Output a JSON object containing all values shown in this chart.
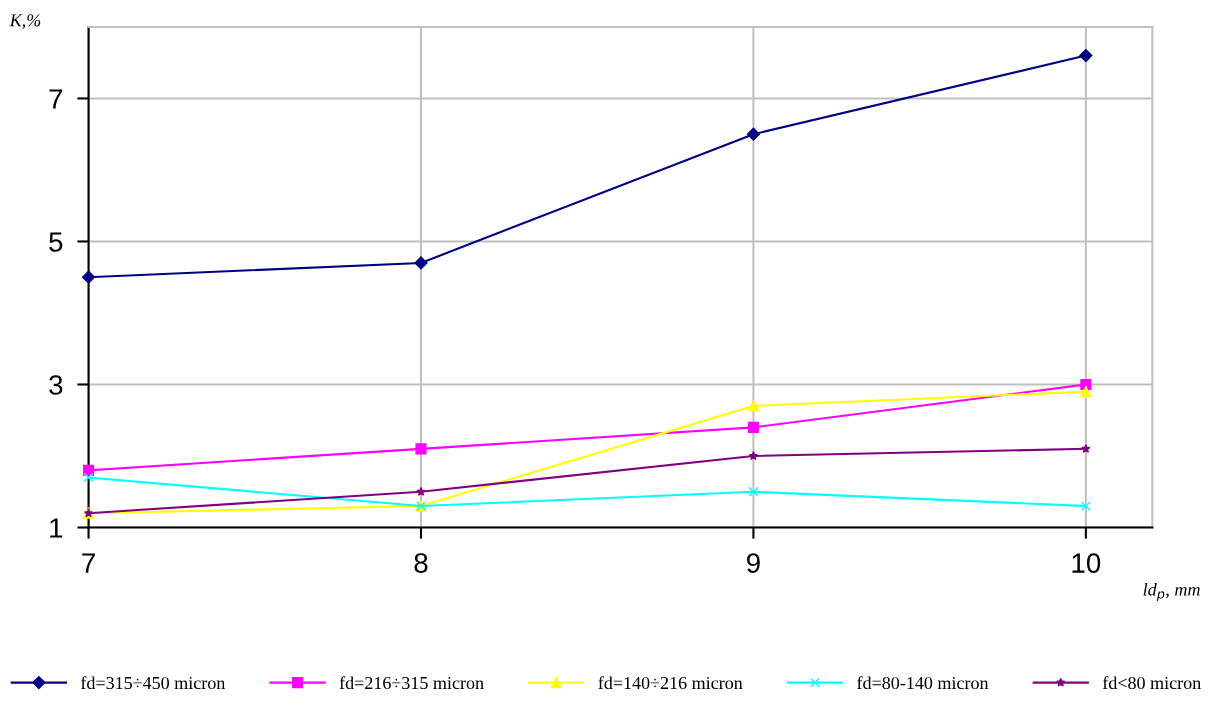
{
  "chart_data": {
    "type": "line",
    "xlabel": "ld$_{p}$, mm",
    "ylabel": "K,%",
    "x": [
      7,
      8,
      9,
      10
    ],
    "xlim": [
      7,
      10.2
    ],
    "xticks": [
      7,
      8,
      9,
      10
    ],
    "ylim": [
      1,
      8
    ],
    "yticks": [
      1,
      3,
      5,
      7
    ],
    "grid": true,
    "legend": "bottom",
    "line_style": "solid",
    "series": [
      {
        "name": "fd=315÷450 micron",
        "color": "#000080",
        "marker": "diamond",
        "values": [
          4.5,
          4.7,
          6.5,
          7.6
        ]
      },
      {
        "name": "fd=216÷315 micron",
        "color": "#ff00ff",
        "marker": "square",
        "values": [
          1.8,
          2.1,
          2.4,
          3.0
        ]
      },
      {
        "name": "fd=140÷216 micron",
        "color": "#ffff00",
        "marker": "triangle",
        "values": [
          1.2,
          1.3,
          2.7,
          2.9
        ]
      },
      {
        "name": "fd=80-140 micron",
        "color": "#00ffff",
        "marker": "cross",
        "values": [
          1.7,
          1.3,
          1.5,
          1.3
        ]
      },
      {
        "name": "fd<80 micron",
        "color": "#800080",
        "marker": "star",
        "values": [
          1.2,
          1.5,
          2.0,
          2.1
        ]
      }
    ]
  }
}
